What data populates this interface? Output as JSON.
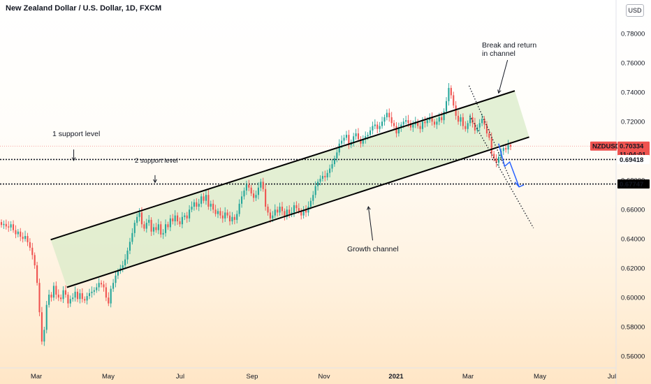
{
  "chart_data": {
    "type": "candlestick",
    "title": "New Zealand Dollar / U.S. Dollar, 1D, FXCM",
    "currency": "USD",
    "symbol": "NZDUSD",
    "last_price": "0.70334",
    "countdown": "11:04:01",
    "y_ticks": [
      "0.78000",
      "0.76000",
      "0.74000",
      "0.72000",
      "0.70000",
      "0.68000",
      "0.66000",
      "0.64000",
      "0.62000",
      "0.60000",
      "0.58000",
      "0.56000"
    ],
    "x_ticks": [
      "Mar",
      "May",
      "Jul",
      "Sep",
      "Nov",
      "2021",
      "Mar",
      "May",
      "Jul"
    ],
    "ylim": [
      0.552,
      0.7925
    ],
    "levels": [
      {
        "name": "1 support level",
        "value": 0.69418,
        "label": "0.69418"
      },
      {
        "name": "2 support level",
        "value": 0.67747,
        "label": "0.67747"
      }
    ],
    "annotations": {
      "break_text_1": "Break and return",
      "break_text_2": "in channel",
      "channel_text": "Growth channel",
      "support1_text": "1 support level",
      "support2_text": "2 support level"
    },
    "channel": {
      "upper": {
        "start": {
          "month": 2.4,
          "price": 0.6395
        },
        "end": {
          "month": 15.3,
          "price": 0.741
        }
      },
      "lower": {
        "start": {
          "month": 2.85,
          "price": 0.607
        },
        "end": {
          "month": 15.7,
          "price": 0.7095
        }
      }
    },
    "colors": {
      "up": "#26a69a",
      "down": "#ef5350",
      "channel_fill": "#d9ebc8",
      "projection": "#2962ff",
      "price_tag": "#ef5350"
    },
    "candles_close": [
      0.6495,
      0.6502,
      0.6485,
      0.6478,
      0.65,
      0.646,
      0.6432,
      0.645,
      0.6415,
      0.64,
      0.642,
      0.6378,
      0.634,
      0.629,
      0.622,
      0.61,
      0.59,
      0.57,
      0.578,
      0.595,
      0.602,
      0.6,
      0.608,
      0.602,
      0.6,
      0.599,
      0.605,
      0.602,
      0.596,
      0.599,
      0.6,
      0.604,
      0.599,
      0.603,
      0.599,
      0.598,
      0.601,
      0.603,
      0.604,
      0.605,
      0.607,
      0.61,
      0.609,
      0.607,
      0.6,
      0.596,
      0.606,
      0.61,
      0.615,
      0.618,
      0.62,
      0.622,
      0.626,
      0.632,
      0.638,
      0.644,
      0.651,
      0.655,
      0.658,
      0.65,
      0.647,
      0.651,
      0.653,
      0.645,
      0.648,
      0.646,
      0.65,
      0.643,
      0.644,
      0.65,
      0.648,
      0.654,
      0.652,
      0.656,
      0.652,
      0.65,
      0.655,
      0.656,
      0.654,
      0.66,
      0.662,
      0.665,
      0.662,
      0.664,
      0.669,
      0.666,
      0.67,
      0.662,
      0.664,
      0.66,
      0.657,
      0.659,
      0.656,
      0.654,
      0.658,
      0.656,
      0.652,
      0.655,
      0.653,
      0.657,
      0.664,
      0.669,
      0.673,
      0.677,
      0.675,
      0.671,
      0.668,
      0.67,
      0.675,
      0.679,
      0.674,
      0.662,
      0.658,
      0.654,
      0.656,
      0.66,
      0.658,
      0.662,
      0.659,
      0.655,
      0.66,
      0.657,
      0.658,
      0.663,
      0.661,
      0.659,
      0.656,
      0.66,
      0.658,
      0.662,
      0.666,
      0.67,
      0.676,
      0.679,
      0.681,
      0.683,
      0.682,
      0.685,
      0.688,
      0.691,
      0.695,
      0.699,
      0.705,
      0.707,
      0.709,
      0.711,
      0.704,
      0.706,
      0.71,
      0.712,
      0.708,
      0.705,
      0.708,
      0.71,
      0.711,
      0.714,
      0.717,
      0.718,
      0.715,
      0.717,
      0.72,
      0.723,
      0.726,
      0.723,
      0.719,
      0.717,
      0.712,
      0.716,
      0.718,
      0.72,
      0.721,
      0.719,
      0.716,
      0.718,
      0.72,
      0.717,
      0.715,
      0.72,
      0.719,
      0.721,
      0.723,
      0.72,
      0.718,
      0.72,
      0.723,
      0.721,
      0.727,
      0.734,
      0.743,
      0.738,
      0.731,
      0.724,
      0.72,
      0.723,
      0.717,
      0.715,
      0.719,
      0.723,
      0.719,
      0.714,
      0.716,
      0.719,
      0.722,
      0.718,
      0.712,
      0.709,
      0.698,
      0.695,
      0.692,
      0.696,
      0.7,
      0.702,
      0.701,
      0.704,
      0.703
    ]
  }
}
